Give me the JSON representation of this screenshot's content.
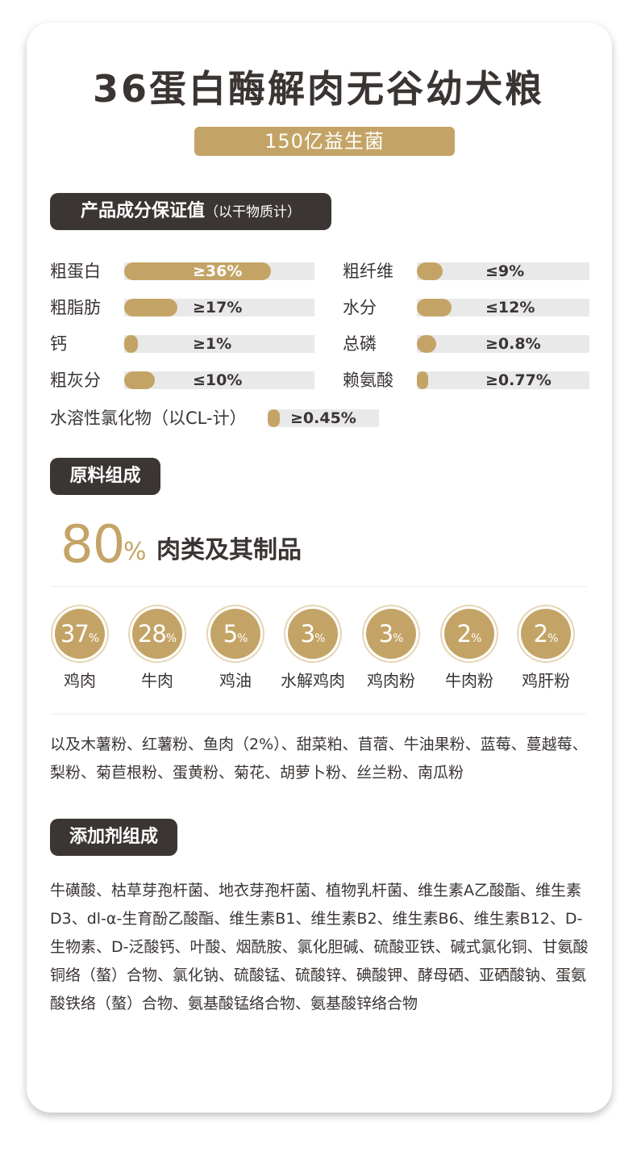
{
  "title": "36蛋白酶解肉无谷幼犬粮",
  "subtitle": "150亿益生菌",
  "guarantee": {
    "heading": "产品成分保证值",
    "heading_note": "（以干物质计）",
    "rows": [
      {
        "label": "粗蛋白",
        "value": "≥36%",
        "fill": 0.77
      },
      {
        "label": "粗纤维",
        "value": "≤9%",
        "fill": 0.15
      },
      {
        "label": "粗脂肪",
        "value": "≥17%",
        "fill": 0.28
      },
      {
        "label": "水分",
        "value": "≤12%",
        "fill": 0.2
      },
      {
        "label": "钙",
        "value": "≥1%",
        "fill": 0.07
      },
      {
        "label": "总磷",
        "value": "≥0.8%",
        "fill": 0.11
      },
      {
        "label": "粗灰分",
        "value": "≤10%",
        "fill": 0.16
      },
      {
        "label": "赖氨酸",
        "value": "≥0.77%",
        "fill": 0.06
      },
      {
        "label": "水溶性氯化物（以CL-计）",
        "value": "≥0.45%",
        "fill": 0.11
      }
    ]
  },
  "ingredients": {
    "heading": "原料组成",
    "meat_percent": "80",
    "meat_percent_sign": "%",
    "meat_label": "肉类及其制品",
    "items": [
      {
        "percent": "37",
        "sign": "%",
        "label": "鸡肉"
      },
      {
        "percent": "28",
        "sign": "%",
        "label": "牛肉"
      },
      {
        "percent": "5",
        "sign": "%",
        "label": "鸡油"
      },
      {
        "percent": "3",
        "sign": "%",
        "label": "水解鸡肉"
      },
      {
        "percent": "3",
        "sign": "%",
        "label": "鸡肉粉"
      },
      {
        "percent": "2",
        "sign": "%",
        "label": "牛肉粉"
      },
      {
        "percent": "2",
        "sign": "%",
        "label": "鸡肝粉"
      }
    ],
    "others": "以及木薯粉、红薯粉、鱼肉（2%）、甜菜粕、苜蓿、牛油果粉、蓝莓、蔓越莓、梨粉、菊苣根粉、蛋黄粉、菊花、胡萝卜粉、丝兰粉、南瓜粉"
  },
  "additives": {
    "heading": "添加剂组成",
    "text": "牛磺酸、枯草芽孢杆菌、地衣芽孢杆菌、植物乳杆菌、维生素A乙酸酯、维生素D3、dl-α-生育酚乙酸酯、维生素B1、维生素B2、维生素B6、维生素B12、D-生物素、D-泛酸钙、叶酸、烟酰胺、氯化胆碱、硫酸亚铁、碱式氯化铜、甘氨酸铜络（螯）合物、氯化钠、硫酸锰、硫酸锌、碘酸钾、酵母硒、亚硒酸钠、蛋氨酸铁络（螯）合物、氨基酸锰络合物、氨基酸锌络合物"
  },
  "colors": {
    "accent": "#c4a466",
    "dark": "#3b3634",
    "track": "#e9e9e9"
  }
}
